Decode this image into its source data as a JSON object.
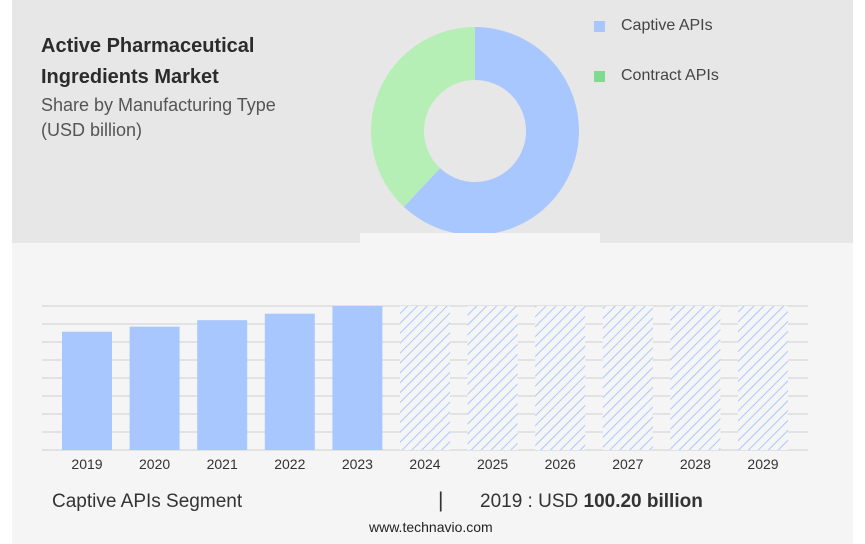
{
  "chart_data": [
    {
      "type": "pie",
      "title": "Active Pharmaceutical Ingredients Market",
      "subtitle": "Share by Manufacturing Type (USD billion)",
      "donut": true,
      "slices": [
        {
          "name": "Captive APIs",
          "value": 62,
          "color": "#a9c7ff"
        },
        {
          "name": "Contract APIs",
          "value": 38,
          "color": "#b6efb6"
        }
      ],
      "legend": [
        {
          "label": "Captive APIs",
          "color": "#a9c7ff"
        },
        {
          "label": "Contract APIs",
          "color": "#7edc8e"
        }
      ],
      "legend_placement": "top-right"
    },
    {
      "type": "bar",
      "categories": [
        "2019",
        "2020",
        "2021",
        "2022",
        "2023",
        "2024",
        "2025",
        "2026",
        "2027",
        "2028",
        "2029"
      ],
      "values": [
        100.2,
        104.5,
        110.0,
        115.5,
        122.0,
        null,
        null,
        null,
        null,
        null,
        null
      ],
      "forecast_values": [
        null,
        null,
        null,
        null,
        null,
        122,
        122,
        122,
        122,
        122,
        122
      ],
      "ylim": [
        0,
        122
      ],
      "gridlines": 8,
      "grid": true,
      "bar_color": "#a9c7ff",
      "forecast_style": "hatched"
    }
  ],
  "title_lines": [
    "Active Pharmaceutical",
    "Ingredients Market"
  ],
  "subtitle_lines": [
    "Share by Manufacturing Type",
    "(USD billion)"
  ],
  "legend": {
    "captive": "Captive APIs",
    "contract": "Contract APIs"
  },
  "footer": {
    "segment": "Captive APIs Segment",
    "divider": "|",
    "year_text": "2019 : USD ",
    "value_text": "100.20 billion",
    "source": "www.technavio.com"
  }
}
